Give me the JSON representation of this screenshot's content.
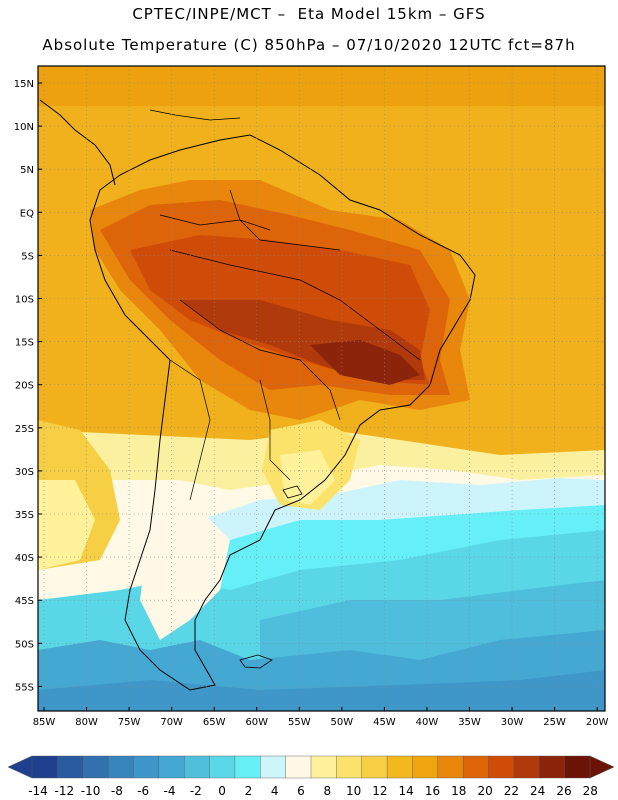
{
  "header": {
    "line1": "CPTEC/INPE/MCT –  Eta Model 15km – GFS",
    "line2": "Absolute Temperature (C) 850hPa – 07/10/2020 12UTC fct=87h"
  },
  "map": {
    "lat_labels": [
      "15N",
      "10N",
      "5N",
      "EQ",
      "5S",
      "10S",
      "15S",
      "20S",
      "25S",
      "30S",
      "35S",
      "40S",
      "45S",
      "50S",
      "55S"
    ],
    "lon_labels": [
      "85W",
      "80W",
      "75W",
      "70W",
      "65W",
      "60W",
      "55W",
      "50W",
      "45W",
      "40W",
      "35W",
      "30W",
      "25W",
      "20W"
    ]
  },
  "colorbar": {
    "ticks": [
      "-14",
      "-12",
      "-10",
      "-8",
      "-6",
      "-4",
      "-2",
      "0",
      "2",
      "4",
      "6",
      "8",
      "10",
      "12",
      "14",
      "16",
      "18",
      "20",
      "22",
      "24",
      "26",
      "28"
    ],
    "colors": [
      "#1f3f8f",
      "#2a5aa0",
      "#3270b0",
      "#3a84be",
      "#3f96c8",
      "#45a8d2",
      "#4fbfdc",
      "#5ad8e8",
      "#66f0f6",
      "#cef5fb",
      "#fff8e6",
      "#fff29a",
      "#fbe36b",
      "#f6cf44",
      "#f2b91f",
      "#efa50f",
      "#e8870c",
      "#de640a",
      "#cf4b08",
      "#b03a0b",
      "#8c230b",
      "#6b1306"
    ],
    "low_color": "#1f3f8f",
    "high_color": "#6b1306"
  }
}
